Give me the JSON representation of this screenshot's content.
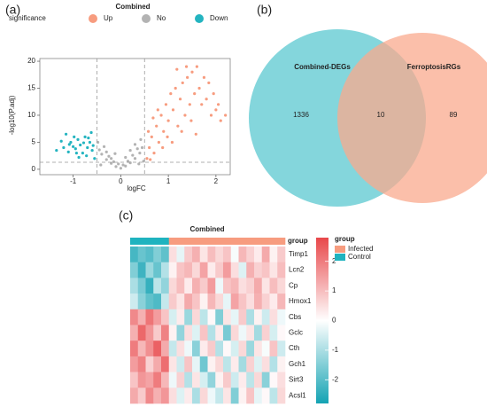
{
  "chart_data": [
    {
      "type": "scatter",
      "panel_label": "(a)",
      "title": "Combined",
      "legend_title": "significance",
      "x_label": "logFC",
      "y_label": "-log10(P.adj)",
      "xlim": [
        -1.7,
        2.3
      ],
      "ylim": [
        -1,
        20.5
      ],
      "xticks": [
        -1,
        0,
        1,
        2
      ],
      "yticks": [
        0,
        5,
        10,
        15,
        20
      ],
      "vlines": [
        -0.5,
        0.5
      ],
      "hline": 1.3,
      "series": [
        {
          "name": "Up",
          "color": "#f79c7f",
          "x": [
            0.55,
            0.6,
            0.65,
            0.7,
            0.75,
            0.8,
            0.85,
            0.9,
            0.95,
            1.0,
            1.05,
            1.1,
            1.15,
            1.2,
            1.25,
            1.3,
            1.35,
            1.4,
            1.45,
            1.5,
            1.55,
            1.6,
            1.65,
            1.7,
            1.75,
            1.8,
            1.85,
            1.9,
            1.95,
            2.0,
            2.05,
            2.1,
            2.2,
            0.58,
            0.68,
            0.78,
            0.88,
            0.98,
            1.08,
            1.18,
            1.28,
            1.38,
            1.48,
            1.58,
            0.62
          ],
          "values": [
            2,
            4,
            6,
            3,
            8,
            5,
            10,
            7,
            12,
            9,
            14,
            11,
            15,
            8,
            13,
            16,
            10,
            17,
            12,
            18,
            14,
            19,
            15,
            12,
            17,
            13,
            16,
            10,
            14,
            11,
            12,
            9,
            10,
            7,
            9.5,
            11,
            4,
            6,
            5,
            18.5,
            7,
            19,
            9,
            6.5,
            1.8
          ]
        },
        {
          "name": "No",
          "color": "#b3b3b3",
          "x": [
            0,
            0.1,
            -0.1,
            0.2,
            -0.2,
            0.3,
            -0.3,
            0.4,
            -0.4,
            0.45,
            -0.45,
            0.35,
            -0.35,
            0.25,
            -0.25,
            0.15,
            -0.15,
            0.05,
            -0.05,
            0.42,
            -0.48,
            0.3,
            -0.3,
            0.48,
            -0.42,
            0.2,
            -0.2,
            0.1,
            -0.12,
            0.38
          ],
          "values": [
            0.2,
            0.6,
            0.5,
            1.2,
            1.1,
            2,
            1.8,
            3,
            2.8,
            4,
            3.6,
            3.8,
            4.2,
            2.6,
            2.4,
            1.5,
            1.4,
            0.8,
            1,
            5.5,
            5,
            4.6,
            3.2,
            1.5,
            0.8,
            3.5,
            2,
            2.2,
            2.9,
            1
          ]
        },
        {
          "name": "Down",
          "color": "#24b4c0",
          "x": [
            -0.55,
            -0.6,
            -0.65,
            -0.7,
            -0.75,
            -0.8,
            -0.85,
            -0.9,
            -0.95,
            -1.0,
            -1.05,
            -1.1,
            -1.15,
            -1.2,
            -0.62,
            -0.72,
            -0.88,
            -0.98,
            -1.25,
            -0.58,
            -0.68,
            -0.78,
            -1.35,
            -0.93,
            -1.08
          ],
          "values": [
            2,
            3.5,
            5,
            4,
            6,
            3,
            4.5,
            5.5,
            3.8,
            4.2,
            5,
            3.2,
            6.5,
            4,
            6.8,
            2.5,
            2.2,
            6,
            5.2,
            4.4,
            5.8,
            4.9,
            3.5,
            3,
            4.6
          ]
        }
      ]
    },
    {
      "type": "venn",
      "panel_label": "(b)",
      "sets": [
        {
          "name": "Combined-DEGs",
          "color": "#6fcfd6"
        },
        {
          "name": "FerroptosisRGs",
          "color": "#f9a98e"
        }
      ],
      "values": [
        1336,
        10,
        89
      ]
    },
    {
      "type": "heatmap",
      "panel_label": "(c)",
      "title": "Combined",
      "group_label": "group",
      "rows": [
        "Timp1",
        "Lcn2",
        "Cp",
        "Hmox1",
        "Cbs",
        "Gclc",
        "Cth",
        "Gch1",
        "Sirt3",
        "Acsl1"
      ],
      "groups": [
        {
          "name": "Infected",
          "color": "#f79c7f"
        },
        {
          "name": "Control",
          "color": "#1fb3bf"
        }
      ],
      "col_groups": [
        "Control",
        "Control",
        "Control",
        "Control",
        "Control",
        "Infected",
        "Infected",
        "Infected",
        "Infected",
        "Infected",
        "Infected",
        "Infected",
        "Infected",
        "Infected",
        "Infected",
        "Infected",
        "Infected",
        "Infected",
        "Infected",
        "Infected"
      ],
      "zlim": [
        -2.8,
        2.8
      ],
      "zticks": [
        2,
        1,
        0,
        -1,
        -2
      ],
      "low_color": "#14a3b3",
      "high_color": "#e8474a",
      "values": [
        [
          -2.2,
          -1.8,
          -2,
          -1.5,
          -1.9,
          0.5,
          -0.3,
          0.8,
          1.2,
          0.4,
          1,
          0.6,
          0.9,
          -0.1,
          1.1,
          0.7,
          0.3,
          1.3,
          0.2,
          0.8
        ],
        [
          -1.5,
          -2.3,
          -1.2,
          -1.8,
          -0.9,
          0.2,
          0.9,
          1.1,
          0.6,
          1.4,
          0.3,
          0.8,
          1.5,
          0.5,
          -0.4,
          1.2,
          0.7,
          0.9,
          0.4,
          1
        ],
        [
          -1,
          -1.6,
          -2.4,
          -0.8,
          -1.3,
          0.6,
          1,
          0.3,
          1.2,
          0.8,
          1.5,
          -0.2,
          0.9,
          1.1,
          0.5,
          0.7,
          1.3,
          0.4,
          1,
          0.6
        ],
        [
          -0.6,
          -1.4,
          -1.9,
          -2.1,
          -0.7,
          0.8,
          0.4,
          1.3,
          0.9,
          0.2,
          1.1,
          0.6,
          -0.3,
          1.4,
          0.9,
          0.5,
          1.2,
          0.7,
          0.3,
          1.1
        ],
        [
          1.8,
          1.2,
          2.1,
          1.5,
          0.9,
          -0.5,
          0.3,
          -1.2,
          0.6,
          -0.8,
          0.1,
          -1.5,
          0.4,
          -0.3,
          0.8,
          -1,
          0.2,
          -0.6,
          0.5,
          -0.2
        ],
        [
          1.2,
          2.3,
          1.6,
          0.8,
          1.9,
          0.2,
          -1.3,
          0.5,
          -0.4,
          0.9,
          -0.9,
          0.3,
          -1.6,
          0.6,
          -0.2,
          0.4,
          -1.1,
          0.7,
          -0.5,
          0.1
        ],
        [
          2,
          1.1,
          1.7,
          2.4,
          1.3,
          -0.7,
          0.5,
          -0.2,
          -1.4,
          0.3,
          0.8,
          -0.9,
          0.1,
          -0.5,
          0.6,
          -1.2,
          0.4,
          -0.1,
          0.9,
          -0.6
        ],
        [
          1.5,
          1.9,
          0.7,
          1.3,
          2.2,
          0.4,
          -0.6,
          0.9,
          -0.3,
          -1.7,
          0.2,
          0.6,
          -0.8,
          0.3,
          -1.1,
          0.7,
          -0.4,
          0.5,
          -0.9,
          0.2
        ],
        [
          0.9,
          1.6,
          1.4,
          2,
          1.1,
          -0.2,
          0.7,
          -0.9,
          0.4,
          -0.5,
          -1.3,
          0.2,
          0.8,
          -0.6,
          0.3,
          -0.8,
          0.6,
          -1.4,
          0.1,
          0.5
        ],
        [
          1.3,
          0.8,
          1.8,
          1.2,
          1.6,
          0.5,
          -0.4,
          0.3,
          -1,
          0.6,
          -0.2,
          -0.7,
          0.4,
          -1.5,
          0.2,
          0.9,
          -0.3,
          0.1,
          -0.8,
          0.6
        ]
      ]
    }
  ]
}
